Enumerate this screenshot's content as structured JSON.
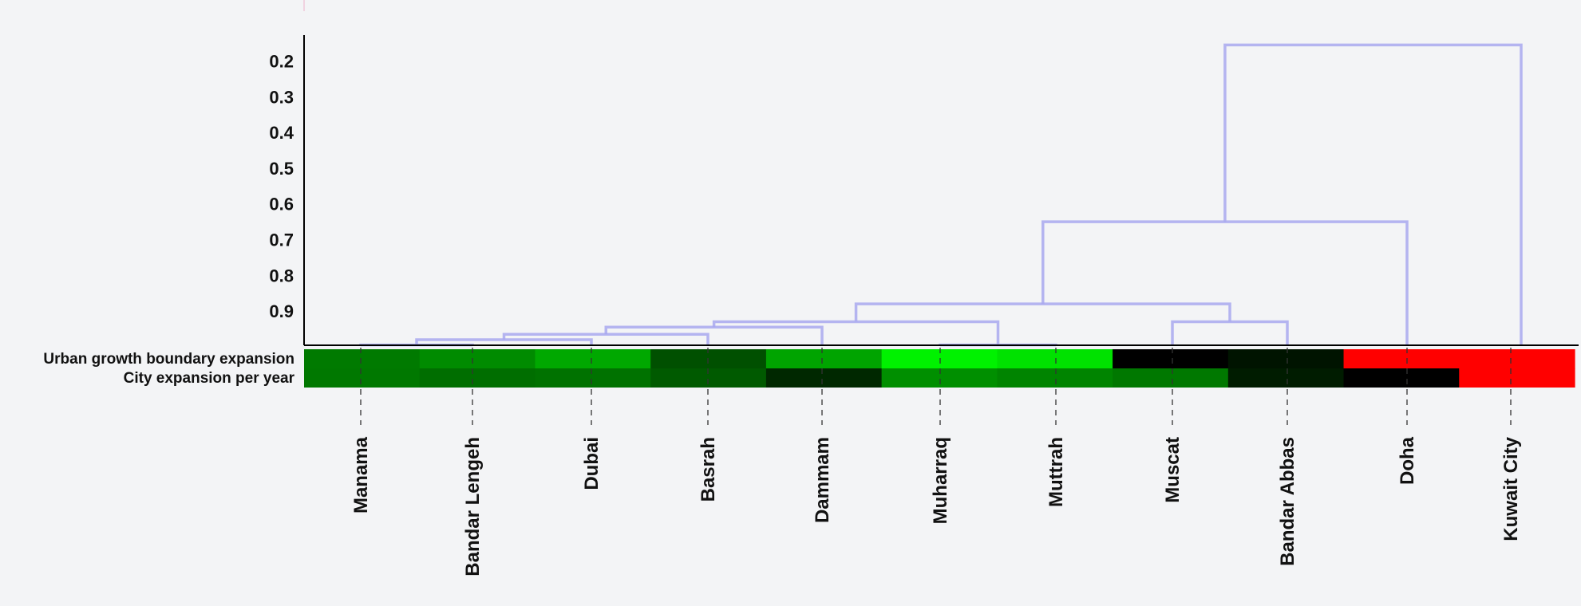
{
  "chart_data": {
    "type": "heatmap",
    "subtype": "clustered heatmap with dendrogram",
    "yaxis": {
      "ticks": [
        "0.2",
        "0.3",
        "0.4",
        "0.5",
        "0.6",
        "0.7",
        "0.8",
        "0.9"
      ],
      "tick_values": [
        0.2,
        0.3,
        0.4,
        0.5,
        0.6,
        0.7,
        0.8,
        0.9
      ],
      "ylim": [
        0.13,
        1.0
      ],
      "inverted": true
    },
    "rows": [
      "Urban growth boundary expansion",
      "City expansion per year"
    ],
    "columns": [
      "Manama",
      "Bandar Lengeh",
      "Dubai",
      "Basrah",
      "Dammam",
      "Muharraq",
      "Muttrah",
      "Muscat",
      "Bandar Abbas",
      "Doha",
      "Kuwait City"
    ],
    "cells": [
      [
        "#007a00",
        "#008b00",
        "#00a800",
        "#005000",
        "#00a400",
        "#00f200",
        "#00e200",
        "#000000",
        "#001400",
        "#ff0000",
        "#ff0000"
      ],
      [
        "#007800",
        "#006e00",
        "#007200",
        "#005a00",
        "#002800",
        "#008f00",
        "#008400",
        "#007800",
        "#001c00",
        "#000000",
        "#ff0000"
      ]
    ],
    "dendrogram": [
      {
        "left": "Manama",
        "right": "Bandar Lengeh",
        "height": 0.995
      },
      {
        "left": "Manama+Bandar Lengeh",
        "right": "Dubai",
        "height": 0.98
      },
      {
        "left": "Manama+Bandar Lengeh+Dubai",
        "right": "Basrah",
        "height": 0.965
      },
      {
        "left": "Manama..Basrah",
        "right": "Dammam",
        "height": 0.945
      },
      {
        "left": "Muharraq",
        "right": "Muttrah",
        "height": 0.995
      },
      {
        "left": "Manama..Dammam",
        "right": "Muharraq+Muttrah",
        "height": 0.93
      },
      {
        "left": "Muscat",
        "right": "Bandar Abbas",
        "height": 0.93
      },
      {
        "left": "Manama..Muttrah",
        "right": "Muscat+Bandar Abbas",
        "height": 0.88
      },
      {
        "left": "Manama..Bandar Abbas",
        "right": "Doha",
        "height": 0.65
      },
      {
        "left": "Manama..Doha",
        "right": "Kuwait City",
        "height": 0.155
      }
    ],
    "colors": {
      "dendrogram_line": "#a8a8ee",
      "axis": "#000000",
      "background": "#f3f4f6"
    }
  }
}
